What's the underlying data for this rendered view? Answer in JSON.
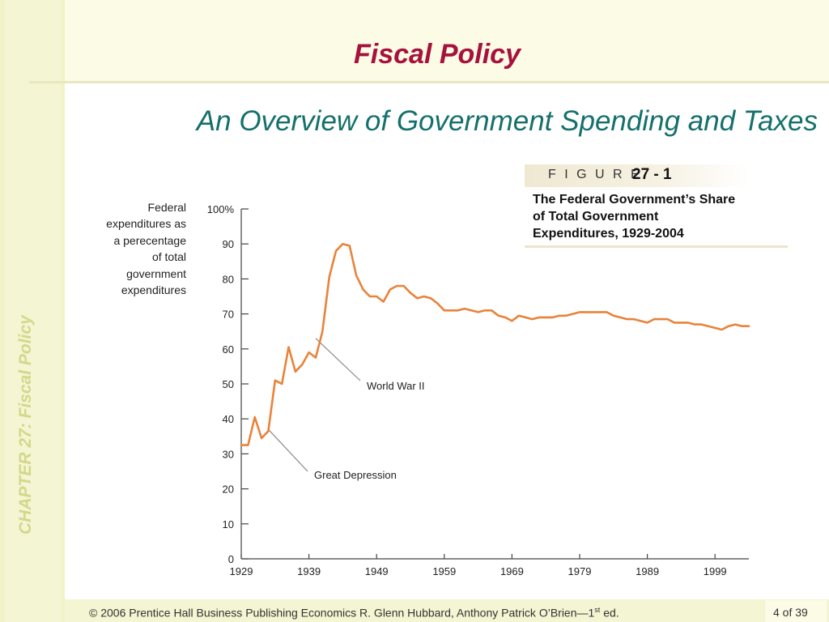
{
  "slide": {
    "title": "Fiscal Policy",
    "subtitle": "An Overview of Government Spending and Taxes",
    "chapter_label": "CHAPTER 27:  Fiscal Policy",
    "footer": {
      "prefix": "© 2006 Prentice Hall Business Publishing   Economics  R. Glenn Hubbard, Anthony Patrick O’Brien—1",
      "sup": "st",
      "suffix": " ed."
    },
    "page": "4 of 39",
    "colors": {
      "title": "#a6123c",
      "subtitle": "#15706b",
      "line": "#e8833a",
      "band": "#f4f5d2"
    }
  },
  "figure": {
    "label": "F I G U R E",
    "number": "27 - 1",
    "caption_lines": [
      "The Federal Government’s Share",
      "of Total Government",
      "Expenditures, 1929-2004"
    ]
  },
  "chart_data": {
    "type": "line",
    "ylabel_lines": [
      "Federal",
      "expenditures as",
      "a perecentage",
      "of total",
      "government",
      "expenditures"
    ],
    "y_ticks": [
      "0",
      "10",
      "20",
      "30",
      "40",
      "50",
      "60",
      "70",
      "80",
      "90",
      "100%"
    ],
    "x_ticks": [
      "1929",
      "1939",
      "1949",
      "1959",
      "1969",
      "1979",
      "1989",
      "1999"
    ],
    "xlim": [
      1929,
      2004
    ],
    "ylim": [
      0,
      100
    ],
    "grid": false,
    "series": [
      {
        "x": [
          1929,
          1930,
          1931,
          1932,
          1933,
          1934,
          1935,
          1936,
          1937,
          1938,
          1939,
          1940,
          1941,
          1942,
          1943,
          1944,
          1945,
          1946,
          1947,
          1948,
          1949,
          1950,
          1951,
          1952,
          1953,
          1954,
          1955,
          1956,
          1957,
          1958,
          1959,
          1960,
          1961,
          1962,
          1963,
          1964,
          1965,
          1966,
          1967,
          1968,
          1969,
          1970,
          1971,
          1972,
          1973,
          1974,
          1975,
          1976,
          1977,
          1978,
          1979,
          1980,
          1981,
          1982,
          1983,
          1984,
          1985,
          1986,
          1987,
          1988,
          1989,
          1990,
          1991,
          1992,
          1993,
          1994,
          1995,
          1996,
          1997,
          1998,
          1999,
          2000,
          2001,
          2002,
          2003,
          2004
        ],
        "values": [
          32.5,
          32.5,
          40.5,
          34.5,
          36.5,
          51,
          50,
          60.5,
          53.5,
          55.5,
          59,
          57.5,
          65,
          80.5,
          88,
          90,
          89.5,
          81,
          77,
          75,
          75,
          73.5,
          77,
          78,
          78,
          76,
          74.5,
          75,
          74.5,
          73,
          71,
          71,
          71,
          71.5,
          71,
          70.5,
          71,
          71,
          69.5,
          69,
          68,
          69.5,
          69,
          68.5,
          69,
          69,
          69,
          69.5,
          69.5,
          70,
          70.5,
          70.5,
          70.5,
          70.5,
          70.5,
          69.5,
          69,
          68.5,
          68.5,
          68,
          67.5,
          68.5,
          68.5,
          68.5,
          67.5,
          67.5,
          67.5,
          67,
          67,
          66.5,
          66,
          65.5,
          66.5,
          67,
          66.5,
          66.5
        ]
      }
    ],
    "annotations": [
      {
        "text": "World War II",
        "x": 1940,
        "y": 63
      },
      {
        "text": "Great Depression",
        "x": 1933,
        "y": 37
      }
    ]
  }
}
